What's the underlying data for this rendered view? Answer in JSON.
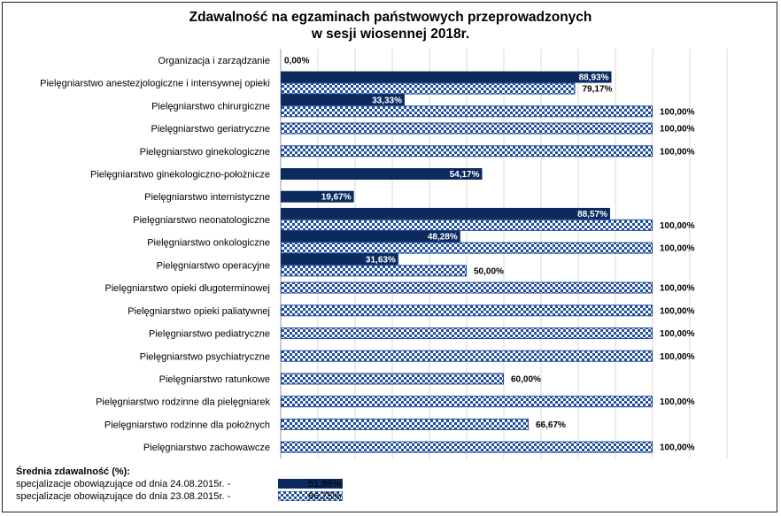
{
  "chart_data": {
    "type": "bar",
    "orientation": "horizontal",
    "title_line1": "Zdawalność na egzaminach państwowych przeprowadzonych",
    "title_line2": "w sesji wiosennej 2018r.",
    "xlim": [
      0,
      100
    ],
    "grid": true,
    "categories": [
      "Organizacja i zarządzanie",
      "Pielęgniarstwo anestezjologiczne i intensywnej opieki",
      "Pielęgniarstwo chirurgiczne",
      "Pielęgniarstwo geriatryczne",
      "Pielęgniarstwo ginekologiczne",
      "Pielęgniarstwo ginekologiczno-położnicze",
      "Pielęgniarstwo internistyczne",
      "Pielęgniarstwo neonatologiczne",
      "Pielęgniarstwo onkologiczne",
      "Pielęgniarstwo operacyjne",
      "Pielęgniarstwo opieki długoterminowej",
      "Pielęgniarstwo opieki paliatywnej",
      "Pielęgniarstwo pediatryczne",
      "Pielęgniarstwo psychiatryczne",
      "Pielęgniarstwo ratunkowe",
      "Pielęgniarstwo rodzinne dla pielęgniarek",
      "Pielęgniarstwo rodzinne dla położnych",
      "Pielęgniarstwo zachowawcze"
    ],
    "series": [
      {
        "color": "#0c2a5e",
        "pattern": "solid",
        "values": [
          0,
          88.93,
          33.33,
          null,
          null,
          54.17,
          19.67,
          88.57,
          48.28,
          31.63,
          null,
          null,
          null,
          null,
          null,
          null,
          null,
          null
        ],
        "labels": [
          "0,00%",
          "88,93%",
          "33,33%",
          "",
          "",
          "54,17%",
          "19,67%",
          "88,57%",
          "48,28%",
          "31,63%",
          "",
          "",
          "",
          "",
          "",
          "",
          "",
          ""
        ]
      },
      {
        "color": "#1f4e9c",
        "pattern": "checkered",
        "values": [
          null,
          79.17,
          100,
          100,
          100,
          null,
          null,
          100,
          100,
          50,
          100,
          100,
          100,
          100,
          60,
          100,
          66.67,
          100
        ],
        "labels": [
          "",
          "79,17%",
          "100,00%",
          "100,00%",
          "100,00%",
          "",
          "",
          "100,00%",
          "100,00%",
          "50,00%",
          "100,00%",
          "100,00%",
          "100,00%",
          "100,00%",
          "60,00%",
          "100,00%",
          "66,67%",
          "100,00%"
        ]
      }
    ]
  },
  "legend": {
    "title": "Średnia zdawalność (%):",
    "items": [
      {
        "label": "specjalizacje obowiązujące od dnia 24.08.2015r. -",
        "value": "51,89%",
        "pattern": "solid"
      },
      {
        "label": "specjalizacje obowiązujące do dnia 23.08.2015r. -",
        "value": "86,75%",
        "pattern": "checkered"
      }
    ]
  }
}
